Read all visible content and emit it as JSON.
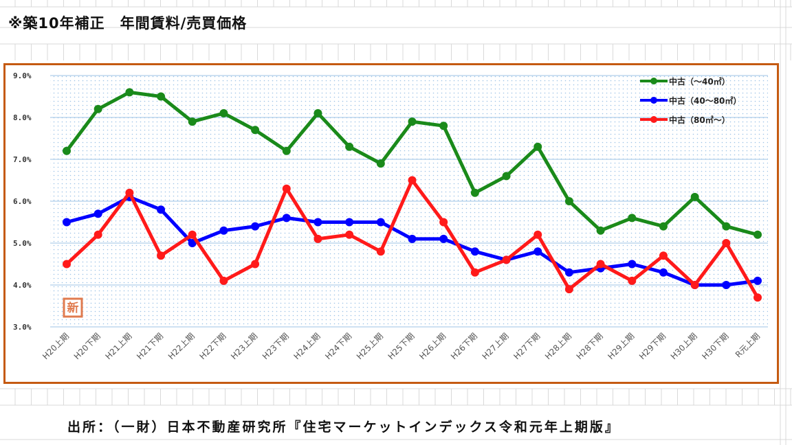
{
  "title": "※築10年補正　年間賃料/売買価格",
  "source": "出所：（一財）日本不動産研究所『住宅マーケットインデックス令和元年上期版』",
  "badge": "新",
  "colors": {
    "frame": "#c55a11",
    "grid": "#9dc3e6",
    "badge": "#e07b4f"
  },
  "chart_data": {
    "type": "line",
    "title": "",
    "xlabel": "",
    "ylabel": "",
    "ylim": [
      3.0,
      9.0
    ],
    "y_ticks": [
      "9.0%",
      "8.0%",
      "7.0%",
      "6.0%",
      "5.0%",
      "4.0%",
      "3.0%"
    ],
    "grid": true,
    "legend_position": "top-right",
    "categories": [
      "H20上期",
      "H20下期",
      "H21上期",
      "H21下期",
      "H22上期",
      "H22下期",
      "H23上期",
      "H23下期",
      "H24上期",
      "H24下期",
      "H25上期",
      "H25下期",
      "H26上期",
      "H26下期",
      "H27上期",
      "H27下期",
      "H28上期",
      "H28下期",
      "H29上期",
      "H29下期",
      "H30上期",
      "H30下期",
      "R元上期"
    ],
    "series": [
      {
        "name": "中古（～40㎡）",
        "color": "#1a8a1a",
        "values": [
          7.2,
          8.2,
          8.6,
          8.5,
          7.9,
          8.1,
          7.7,
          7.2,
          8.1,
          7.3,
          6.9,
          7.9,
          7.8,
          6.2,
          6.6,
          7.3,
          6.0,
          5.3,
          5.6,
          5.4,
          6.1,
          5.4,
          5.2
        ]
      },
      {
        "name": "中古（40～80㎡）",
        "color": "#0000ff",
        "values": [
          5.5,
          5.7,
          6.1,
          5.8,
          5.0,
          5.3,
          5.4,
          5.6,
          5.5,
          5.5,
          5.5,
          5.1,
          5.1,
          4.8,
          4.6,
          4.8,
          4.3,
          4.4,
          4.5,
          4.3,
          4.0,
          4.0,
          4.1
        ]
      },
      {
        "name": "中古（80㎡～）",
        "color": "#ff1a1a",
        "values": [
          4.5,
          5.2,
          6.2,
          4.7,
          5.2,
          4.1,
          4.5,
          6.3,
          5.1,
          5.2,
          4.8,
          6.5,
          5.5,
          4.3,
          4.6,
          5.2,
          3.9,
          4.5,
          4.1,
          4.7,
          4.0,
          5.0,
          3.7
        ]
      }
    ]
  }
}
